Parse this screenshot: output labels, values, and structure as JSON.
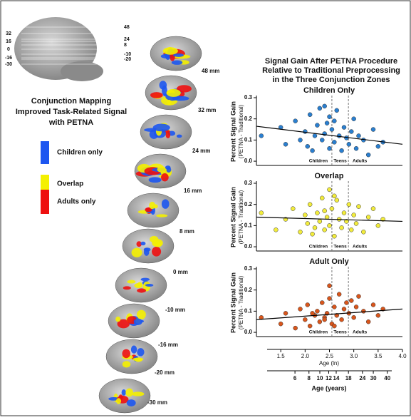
{
  "figure": {
    "thumbnail_levels": {
      "left": [
        "32",
        "16",
        "0",
        "-16",
        "-30"
      ],
      "right": [
        "48",
        "24",
        "8",
        "-10",
        "-20"
      ]
    },
    "left_title": [
      "Conjunction Mapping",
      "Improved Task-Related Signal",
      "with PETNA"
    ],
    "legend": [
      {
        "label": "Children only",
        "color": "#1d56f0"
      },
      {
        "label": "Overlap",
        "color": "#f4f000"
      },
      {
        "label": "Adults only",
        "color": "#ee1010"
      }
    ],
    "slices": [
      "48 mm",
      "32 mm",
      "24 mm",
      "16 mm",
      "8 mm",
      "0 mm",
      "-10 mm",
      "-16 mm",
      "-20 mm",
      "-30 mm"
    ],
    "right_title": [
      "Signal Gain After PETNA Procedure",
      "Relative to Traditional Preprocessing",
      "in the Three Conjunction Zones"
    ]
  },
  "chart_data": [
    {
      "type": "scatter",
      "title": "Children Only",
      "ylabel": [
        "Percent Signal Gain",
        "(PETNA - Traditional)"
      ],
      "color": "#2a7fd0",
      "x": [
        1.1,
        1.5,
        1.6,
        1.8,
        1.9,
        2.0,
        2.05,
        2.1,
        2.2,
        2.25,
        2.3,
        2.35,
        2.4,
        2.45,
        2.5,
        2.5,
        2.55,
        2.6,
        2.65,
        2.7,
        2.75,
        2.8,
        2.85,
        2.9,
        2.95,
        3.0,
        3.05,
        3.1,
        3.2,
        3.3,
        3.4,
        3.5,
        3.6,
        2.15,
        2.6,
        2.4
      ],
      "y": [
        0.12,
        0.16,
        0.08,
        0.19,
        0.1,
        0.14,
        0.07,
        0.22,
        0.12,
        0.17,
        0.25,
        0.1,
        0.13,
        0.18,
        0.06,
        0.21,
        0.15,
        0.09,
        0.24,
        0.12,
        0.05,
        0.16,
        0.11,
        0.08,
        0.14,
        0.2,
        0.06,
        0.12,
        0.1,
        0.03,
        0.15,
        0.07,
        0.09,
        0.05,
        0.19,
        0.26
      ],
      "fit": {
        "x": [
          1.0,
          4.0
        ],
        "y": [
          0.165,
          0.08
        ]
      },
      "dividers": [
        2.55,
        2.89
      ],
      "zones": [
        "Children",
        "Teens",
        "Adults"
      ],
      "xlim": [
        1.0,
        4.0
      ],
      "ylim": [
        -0.02,
        0.3
      ],
      "yticks": [
        {
          "value": 0,
          "label": "0.0"
        },
        0.1,
        0.2,
        0.3
      ]
    },
    {
      "type": "scatter",
      "title": "Overlap",
      "ylabel": [
        "Percent Signal Gain",
        "(PETNA - Traditional)"
      ],
      "color": "#f2ec3c",
      "x": [
        1.1,
        1.4,
        1.6,
        1.75,
        1.9,
        2.0,
        2.05,
        2.1,
        2.2,
        2.25,
        2.3,
        2.35,
        2.4,
        2.45,
        2.5,
        2.5,
        2.55,
        2.6,
        2.65,
        2.7,
        2.75,
        2.8,
        2.85,
        2.9,
        2.95,
        3.0,
        3.05,
        3.1,
        3.2,
        3.3,
        3.4,
        3.5,
        3.6,
        2.15,
        2.6,
        2.4
      ],
      "y": [
        0.16,
        0.08,
        0.13,
        0.18,
        0.07,
        0.15,
        0.11,
        0.2,
        0.09,
        0.16,
        0.12,
        0.23,
        0.08,
        0.14,
        0.27,
        0.1,
        0.18,
        0.05,
        0.22,
        0.13,
        0.09,
        0.16,
        0.12,
        0.2,
        0.08,
        0.15,
        0.11,
        0.19,
        0.07,
        0.14,
        0.18,
        0.1,
        0.13,
        0.06,
        0.24,
        0.17
      ],
      "fit": {
        "x": [
          1.0,
          4.0
        ],
        "y": [
          0.14,
          0.12
        ]
      },
      "dividers": [
        2.55,
        2.89
      ],
      "zones": [
        "Children",
        "Teens",
        "Adults"
      ],
      "xlim": [
        1.0,
        4.0
      ],
      "ylim": [
        -0.02,
        0.3
      ],
      "yticks": [
        {
          "value": 0,
          "label": "0.0"
        },
        0.1,
        0.2,
        0.3
      ]
    },
    {
      "type": "scatter",
      "title": "Adult Only",
      "ylabel": [
        "Percent Signal Gain",
        "(PETNA - Traditional)"
      ],
      "color": "#d9561c",
      "x": [
        1.1,
        1.5,
        1.6,
        1.8,
        1.9,
        2.0,
        2.05,
        2.1,
        2.2,
        2.25,
        2.3,
        2.35,
        2.4,
        2.45,
        2.5,
        2.5,
        2.55,
        2.6,
        2.65,
        2.7,
        2.75,
        2.8,
        2.85,
        2.9,
        2.95,
        3.0,
        3.05,
        3.1,
        3.2,
        3.3,
        3.4,
        3.5,
        3.6,
        2.15,
        2.6,
        2.4
      ],
      "y": [
        0.07,
        0.04,
        0.09,
        0.02,
        0.11,
        0.06,
        0.13,
        0.03,
        0.08,
        0.1,
        0.05,
        0.14,
        0.07,
        0.09,
        0.22,
        0.16,
        0.04,
        0.12,
        0.08,
        0.18,
        0.06,
        0.11,
        0.14,
        0.09,
        0.15,
        0.07,
        0.12,
        0.17,
        0.1,
        0.05,
        0.13,
        0.08,
        0.11,
        0.09,
        0.03,
        0.06
      ],
      "fit": {
        "x": [
          1.0,
          4.0
        ],
        "y": [
          0.06,
          0.11
        ]
      },
      "dividers": [
        2.55,
        2.89
      ],
      "zones": [
        "Children",
        "Teens",
        "Adults"
      ],
      "xlim": [
        1.0,
        4.0
      ],
      "ylim": [
        -0.02,
        0.3
      ],
      "yticks": [
        {
          "value": 0,
          "label": "0.0"
        },
        0.1,
        0.2,
        0.3
      ],
      "xlabel": "Age (ln)",
      "xticks": [
        1.5,
        {
          "value": 2,
          "label": "2.0"
        },
        2.5,
        {
          "value": 3,
          "label": "3.0"
        },
        3.5,
        {
          "value": 4,
          "label": "4.0"
        }
      ],
      "x2label": "Age (years)",
      "x2_scale": "ln",
      "x2ticks": [
        6,
        8,
        10,
        12,
        14,
        18,
        24,
        30,
        40
      ]
    }
  ]
}
